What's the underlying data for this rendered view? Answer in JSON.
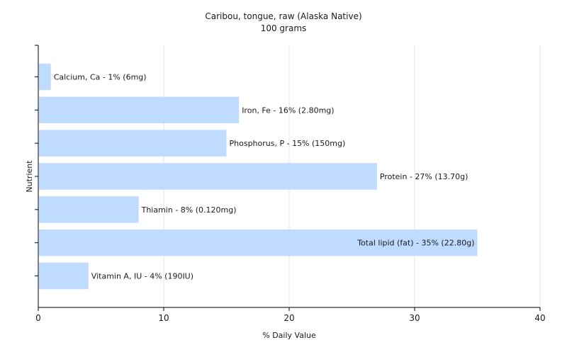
{
  "chart_data": {
    "type": "bar",
    "orientation": "horizontal",
    "title": "Caribou, tongue, raw (Alaska Native)",
    "subtitle": "100 grams",
    "xlabel": "% Daily Value",
    "ylabel": "Nutrient",
    "xlim": [
      0,
      40
    ],
    "xticks": [
      0,
      10,
      20,
      30,
      40
    ],
    "grid": true,
    "bar_color": "#bfdbff",
    "categories": [
      "Calcium, Ca",
      "Iron, Fe",
      "Phosphorus, P",
      "Protein",
      "Thiamin",
      "Total lipid (fat)",
      "Vitamin A, IU"
    ],
    "values": [
      1,
      16,
      15,
      27,
      8,
      35,
      4
    ],
    "labels": [
      "Calcium, Ca - 1% (6mg)",
      "Iron, Fe - 16% (2.80mg)",
      "Phosphorus, P - 15% (150mg)",
      "Protein - 27% (13.70g)",
      "Thiamin - 8% (0.120mg)",
      "Total lipid (fat) - 35% (22.80g)",
      "Vitamin A, IU - 4% (190IU)"
    ]
  }
}
